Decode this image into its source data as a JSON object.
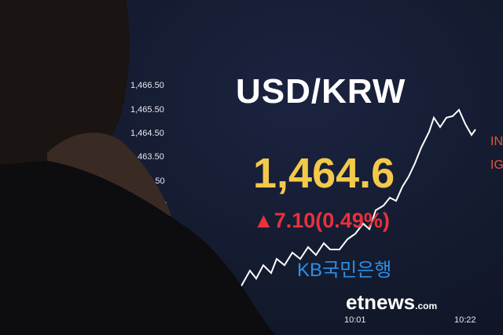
{
  "board": {
    "title": "USD/KRW",
    "price": "1,464.6",
    "change_arrow": "▲",
    "change": "7.10(0.49%)",
    "bank_logo": "KB국민은행",
    "side_labels": [
      "IN",
      "IG"
    ],
    "axis_ticks": [
      "1,466.50",
      "1,465.50",
      "1,464.50",
      "1,463.50",
      "462.50",
      "50"
    ],
    "time_labels": [
      "10:01",
      "10:22"
    ],
    "colors": {
      "price": "#f3c94a",
      "change": "#e8323c",
      "logo": "#2d8fe8",
      "background": "#131a2d"
    }
  },
  "watermark": {
    "text": "etnews",
    "suffix": ".com"
  }
}
